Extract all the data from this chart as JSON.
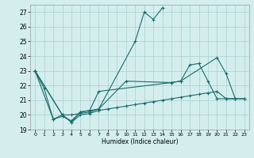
{
  "title": "",
  "xlabel": "Humidex (Indice chaleur)",
  "xlim": [
    -0.5,
    23.5
  ],
  "ylim": [
    19,
    27.5
  ],
  "yticks": [
    19,
    20,
    21,
    22,
    23,
    24,
    25,
    26,
    27
  ],
  "xticks": [
    0,
    1,
    2,
    3,
    4,
    5,
    6,
    7,
    8,
    9,
    10,
    11,
    12,
    13,
    14,
    15,
    16,
    17,
    18,
    19,
    20,
    21,
    22,
    23
  ],
  "bg_color": "#d4eeee",
  "grid_color": "#aed4d4",
  "line_color": "#1a6b6b",
  "series": [
    {
      "x": [
        0,
        1,
        2,
        3,
        4,
        5,
        6,
        7,
        15,
        16,
        17,
        18,
        19,
        20,
        21,
        22
      ],
      "y": [
        23.0,
        21.8,
        19.7,
        19.9,
        19.6,
        20.2,
        20.3,
        21.6,
        22.2,
        22.3,
        23.4,
        23.5,
        22.3,
        21.1,
        21.1,
        21.1
      ]
    },
    {
      "x": [
        0,
        2,
        3,
        4,
        5,
        6,
        7,
        11,
        12,
        13,
        14
      ],
      "y": [
        23.0,
        19.7,
        20.0,
        19.5,
        20.2,
        20.3,
        20.4,
        25.0,
        27.0,
        26.5,
        27.3
      ]
    },
    {
      "x": [
        0,
        3,
        4,
        6,
        7,
        10,
        15,
        16,
        20,
        21,
        22,
        23
      ],
      "y": [
        23.0,
        20.0,
        20.0,
        20.2,
        20.4,
        22.3,
        22.2,
        22.3,
        23.9,
        22.8,
        21.1,
        21.1
      ]
    },
    {
      "x": [
        0,
        3,
        4,
        5,
        6,
        7,
        8,
        9,
        10,
        11,
        12,
        13,
        14,
        15,
        16,
        17,
        18,
        19,
        20,
        21,
        22,
        23
      ],
      "y": [
        23.0,
        20.0,
        19.5,
        20.0,
        20.1,
        20.3,
        20.4,
        20.5,
        20.6,
        20.7,
        20.8,
        20.9,
        21.0,
        21.1,
        21.2,
        21.3,
        21.4,
        21.5,
        21.6,
        21.1,
        21.1,
        21.1
      ]
    }
  ]
}
